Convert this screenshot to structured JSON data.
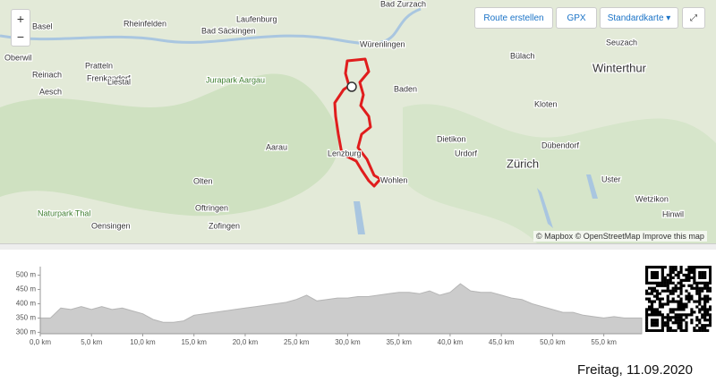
{
  "map": {
    "places": [
      "Basel",
      "Rheinfelden",
      "Laufenburg",
      "Bad Zurzach",
      "Bad Säckingen",
      "Würenlingen",
      "Seuzach",
      "Oberwil",
      "Pratteln",
      "Frenkendorf",
      "Reinach",
      "Liestal",
      "Aesch",
      "Jurapark Aargau",
      "Bülach",
      "Winterthur",
      "Baden",
      "Kloten",
      "Dietikon",
      "Dübendorf",
      "Aarau",
      "Lenzburg",
      "Urdorf",
      "Zürich",
      "Olten",
      "Wohlen",
      "Uster",
      "Oftringen",
      "Wetzikon",
      "Naturpark Thal",
      "Hinwil",
      "Oensingen",
      "Zofingen"
    ],
    "controls": {
      "zoom_in": "+",
      "zoom_out": "−",
      "route": "Route erstellen",
      "gpx": "GPX",
      "style": "Standardkarte ▾"
    },
    "attribution": "© Mapbox © OpenStreetMap Improve this map"
  },
  "chart_data": {
    "type": "area",
    "color": "#cccccc",
    "x": [
      0,
      1,
      2,
      3,
      4,
      5,
      6,
      7,
      8,
      9,
      10,
      11,
      12,
      13,
      14,
      15,
      16,
      17,
      18,
      19,
      20,
      21,
      22,
      23,
      24,
      25,
      26,
      27,
      28,
      29,
      30,
      31,
      32,
      33,
      34,
      35,
      36,
      37,
      38,
      39,
      40,
      41,
      42,
      43,
      44,
      45,
      46,
      47,
      48,
      49,
      50,
      51,
      52,
      53,
      54,
      55,
      56,
      57,
      58,
      58.7
    ],
    "values": [
      350,
      350,
      385,
      380,
      390,
      380,
      390,
      380,
      385,
      375,
      365,
      345,
      335,
      335,
      340,
      360,
      365,
      370,
      375,
      380,
      385,
      390,
      395,
      400,
      405,
      415,
      430,
      410,
      415,
      420,
      420,
      425,
      425,
      430,
      435,
      440,
      440,
      435,
      445,
      430,
      440,
      470,
      445,
      440,
      440,
      430,
      420,
      415,
      400,
      390,
      380,
      370,
      370,
      360,
      355,
      350,
      355,
      350,
      350,
      350
    ],
    "xlim": [
      0,
      58.7
    ],
    "ylim": [
      295,
      530
    ],
    "xticks": [
      {
        "value": 0,
        "label": "0,0 km"
      },
      {
        "value": 5,
        "label": "5,0 km"
      },
      {
        "value": 10,
        "label": "10,0 km"
      },
      {
        "value": 15,
        "label": "15,0 km"
      },
      {
        "value": 20,
        "label": "20,0 km"
      },
      {
        "value": 25,
        "label": "25,0 km"
      },
      {
        "value": 30,
        "label": "30,0 km"
      },
      {
        "value": 35,
        "label": "35,0 km"
      },
      {
        "value": 40,
        "label": "40,0 km"
      },
      {
        "value": 45,
        "label": "45,0 km"
      },
      {
        "value": 50,
        "label": "50,0 km"
      },
      {
        "value": 55,
        "label": "55,0 km"
      }
    ],
    "yticks": [
      {
        "value": 300,
        "label": "300 m"
      },
      {
        "value": 350,
        "label": "350 m"
      },
      {
        "value": 400,
        "label": "400 m"
      },
      {
        "value": 450,
        "label": "450 m"
      },
      {
        "value": 500,
        "label": "500 m"
      }
    ]
  },
  "footer": {
    "date": "Freitag, 11.09.2020"
  }
}
